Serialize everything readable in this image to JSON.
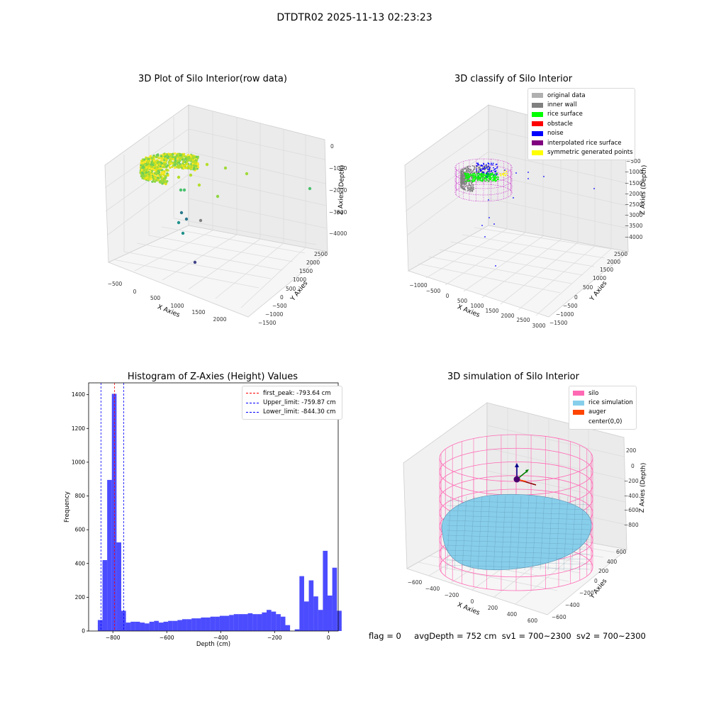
{
  "suptitle": "DTDTR02 2025-11-13 02:23:23",
  "footer": {
    "flag": "flag = 0",
    "avg_depth": "avgDepth = 752 cm",
    "sv1": "sv1 = 700~2300",
    "sv2": "sv2 = 700~2300"
  },
  "chart_data": [
    {
      "type": "scatter",
      "title": "3D Plot of Silo Interior(row data)",
      "xlabel": "X Axies",
      "ylabel": "Y Axies",
      "zlabel": "Z Axies (Depth)",
      "x_ticks": [
        "−500",
        "0",
        "500",
        "1000",
        "1500",
        "2000"
      ],
      "y_ticks": [
        "−1500",
        "−1000",
        "−500",
        "0",
        "500",
        "1000",
        "1500",
        "2000",
        "2500"
      ],
      "z_ticks": [
        "0",
        "−1000",
        "−2000",
        "−3000",
        "−4000"
      ],
      "colormap": "viridis"
    },
    {
      "type": "scatter",
      "title": "3D classify of Silo Interior",
      "xlabel": "X Axies",
      "ylabel": "Y Axies",
      "zlabel": "Z Axies (Depth)",
      "x_ticks": [
        "−1000",
        "−500",
        "0",
        "500",
        "1000",
        "1500",
        "2000",
        "2500",
        "3000"
      ],
      "y_ticks": [
        "−1500",
        "−1000",
        "−500",
        "0",
        "500",
        "1000",
        "1500",
        "2000",
        "2500"
      ],
      "z_ticks": [
        "0",
        "−500",
        "−1000",
        "−1500",
        "−2000",
        "−2500",
        "−3000",
        "−3500",
        "−4000"
      ],
      "legend": [
        {
          "label": "original data",
          "color": "#b0b0b0"
        },
        {
          "label": "inner wall",
          "color": "#808080"
        },
        {
          "label": "rice surface",
          "color": "#00ff00"
        },
        {
          "label": "obstacle",
          "color": "#ff0000"
        },
        {
          "label": "noise",
          "color": "#0000ff"
        },
        {
          "label": "interpolated rice surface",
          "color": "#800080"
        },
        {
          "label": "symmetric generated points",
          "color": "#ffff00"
        }
      ]
    },
    {
      "type": "bar",
      "title": "Histogram of Z-Axies (Height) Values",
      "xlabel": "Depth (cm)",
      "ylabel": "Frequency",
      "xlim": [
        -890,
        36
      ],
      "ylim": [
        0,
        1470
      ],
      "x_ticks": [
        -800,
        -600,
        -400,
        -200,
        0
      ],
      "x_tick_labels": [
        "−800",
        "−600",
        "−400",
        "−200",
        "0"
      ],
      "y_ticks": [
        0,
        200,
        400,
        600,
        800,
        1000,
        1200,
        1400
      ],
      "bar_color": "#0000ff",
      "bin_start": -856,
      "bin_width": 17.4,
      "values": [
        65,
        420,
        895,
        1405,
        525,
        120,
        50,
        55,
        55,
        50,
        45,
        55,
        60,
        50,
        55,
        60,
        60,
        65,
        70,
        70,
        75,
        75,
        80,
        80,
        85,
        85,
        90,
        90,
        95,
        100,
        100,
        100,
        105,
        100,
        100,
        110,
        125,
        115,
        100,
        85,
        35,
        0,
        10,
        325,
        175,
        300,
        205,
        125,
        475,
        210,
        375,
        120
      ],
      "vlines": [
        {
          "label": "first_peak: -793.64 cm",
          "x": -793.64,
          "color": "#ff0000"
        },
        {
          "label": "Upper_limit: -759.87 cm",
          "x": -759.87,
          "color": "#0000ff"
        },
        {
          "label": "Lower_limit: -844.30 cm",
          "x": -844.3,
          "color": "#0000ff"
        }
      ]
    },
    {
      "type": "area",
      "title": "3D simulation of Silo Interior",
      "xlabel": "X Axies",
      "ylabel": "Y Axies",
      "zlabel": "Z Axies (Depth)",
      "x_ticks": [
        "−600",
        "−400",
        "−200",
        "0",
        "200",
        "400",
        "600"
      ],
      "y_ticks": [
        "−600",
        "−400",
        "−200",
        "0",
        "200",
        "400",
        "600"
      ],
      "z_ticks": [
        "200",
        "0",
        "−200",
        "−400",
        "−600",
        "−800"
      ],
      "legend": [
        {
          "label": "silo",
          "color": "#ff69b4"
        },
        {
          "label": "rice simulation",
          "color": "#87ceeb"
        },
        {
          "label": "auger",
          "color": "#ff4500"
        },
        {
          "label": "center(0,0)",
          "color": "#ffffff"
        }
      ]
    }
  ]
}
